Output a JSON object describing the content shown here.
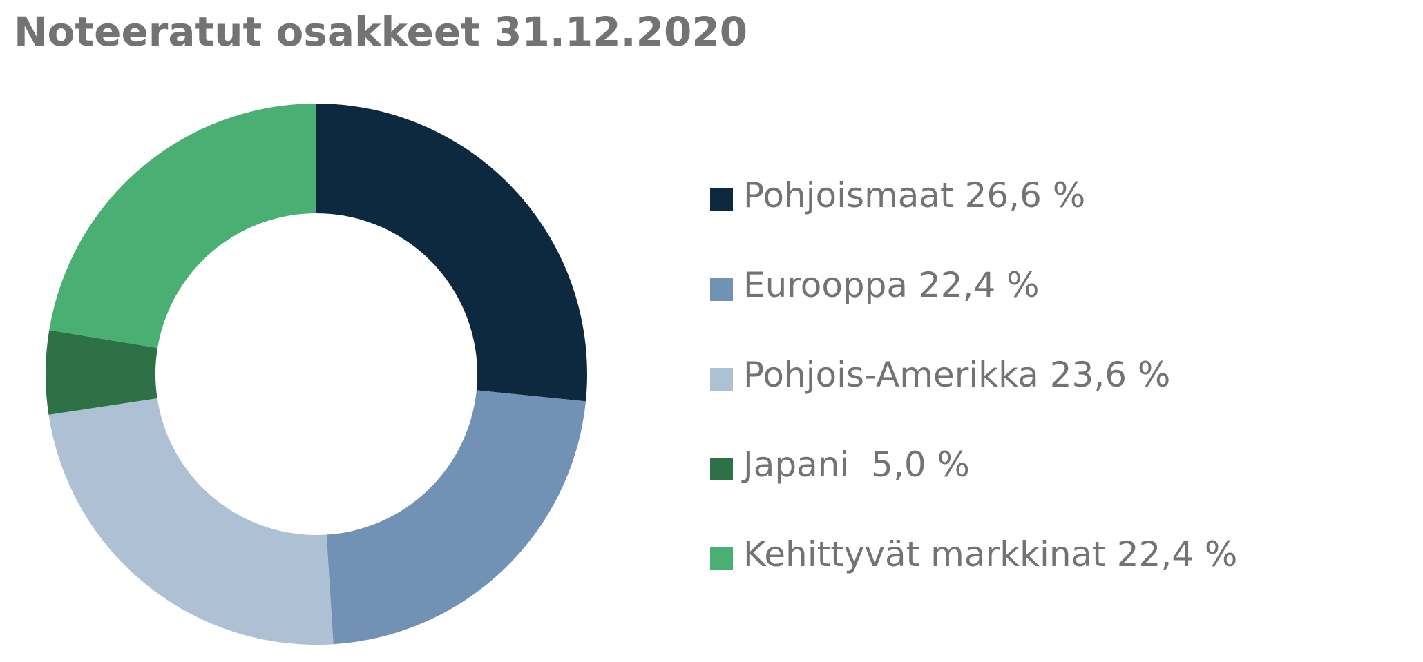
{
  "chart_data": {
    "type": "pie",
    "variant": "donut",
    "title": "Noteeratut osakkeet 31.12.2020",
    "legend_position": "right",
    "slices": [
      {
        "name": "Pohjoismaat",
        "value": 26.6,
        "label": "Pohjoismaat 26,6 %",
        "color": "#0d2940"
      },
      {
        "name": "Eurooppa",
        "value": 22.4,
        "label": "Eurooppa 22,4 %",
        "color": "#7292b5"
      },
      {
        "name": "Pohjois-Amerikka",
        "value": 23.6,
        "label": "Pohjois-Amerikka 23,6 %",
        "color": "#aec0d4"
      },
      {
        "name": "Japani",
        "value": 5.0,
        "label": "Japani  5,0 %",
        "color": "#2f7147"
      },
      {
        "name": "Kehittyvät markkinat",
        "value": 22.4,
        "label": "Kehittyvät markkinat 22,4 %",
        "color": "#4aaf72"
      }
    ]
  }
}
